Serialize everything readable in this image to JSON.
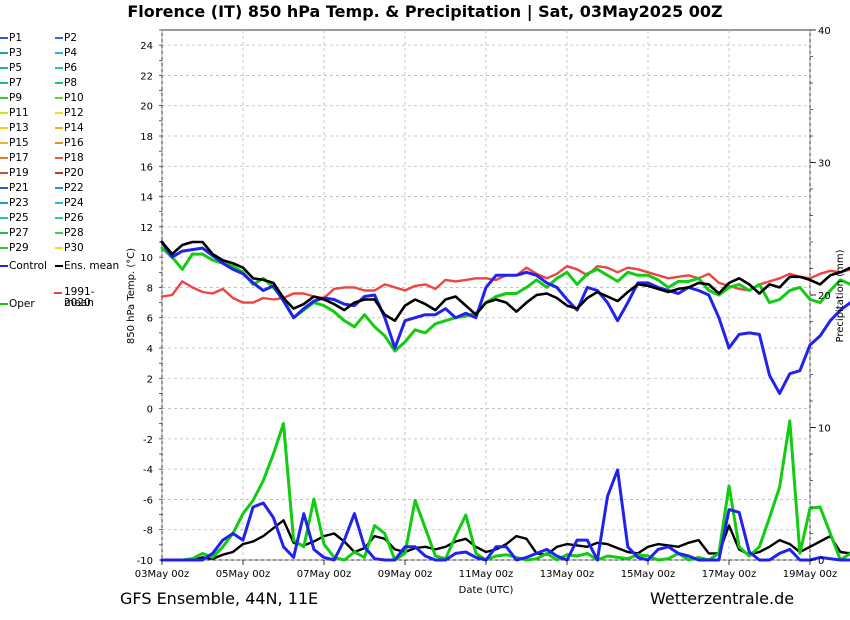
{
  "title": "Florence  (IT)  850 hPa Temp. & Precipitation | Sat, 03May2025 00Z",
  "footer": {
    "model": "GFS Ensemble, 44N, 11E",
    "source": "Wetterzentrale.de"
  },
  "legend": {
    "perturbations": [
      "P1",
      "P2",
      "P3",
      "P4",
      "P5",
      "P6",
      "P7",
      "P8",
      "P9",
      "P10",
      "P11",
      "P12",
      "P13",
      "P14",
      "P15",
      "P16",
      "P17",
      "P18",
      "P19",
      "P20",
      "P21",
      "P22",
      "P23",
      "P24",
      "P25",
      "P26",
      "P27",
      "P28",
      "P29",
      "P30"
    ],
    "control": "Control",
    "ens_mean": "Ens. mean",
    "climate_mean_line1": "1991-2020",
    "climate_mean_line2": "mean",
    "oper": "Oper"
  },
  "colors": {
    "P1": "#1f5fd6",
    "P2": "#2e6ee0",
    "P3": "#1aa6a6",
    "P4": "#2fb3d1",
    "P5": "#17b4b4",
    "P6": "#22c6b0",
    "P7": "#1ebf7a",
    "P8": "#20c46b",
    "P9": "#33cc33",
    "P10": "#5ed62b",
    "P11": "#d6e020",
    "P12": "#e8e030",
    "P13": "#f0d21e",
    "P14": "#e8b020",
    "P15": "#f0b030",
    "P16": "#e0902a",
    "P17": "#e07a2a",
    "P18": "#d8602e",
    "P19": "#c95030",
    "P20": "#c03030",
    "P21": "#1f5fd6",
    "P22": "#2a8ef0",
    "P23": "#1aa0c0",
    "P24": "#28b8e0",
    "P25": "#20c0c0",
    "P26": "#2ad09a",
    "P27": "#20b850",
    "P28": "#40d040",
    "P29": "#30c030",
    "P30": "#e8e020",
    "control": "#2222ee",
    "ens_mean": "#000000",
    "climate_mean": "#ee4444",
    "oper": "#11cc11"
  },
  "chart_data": {
    "type": "line",
    "xlabel": "Date (UTC)",
    "ylabel_left": "850 hPa Temp. (°C)",
    "ylabel_right": "Precipitation (mm)",
    "ylim_left": [
      -10,
      25
    ],
    "ylim_right": [
      0,
      40
    ],
    "y_ticks_left": [
      "-10",
      "-8",
      "-6",
      "-4",
      "-2",
      "0",
      "2",
      "4",
      "6",
      "8",
      "10",
      "12",
      "14",
      "16",
      "18",
      "20",
      "22",
      "24"
    ],
    "y_ticks_right": [
      "0",
      "10",
      "20",
      "30",
      "40"
    ],
    "x_ticks": [
      "03May 00z",
      "05May 00z",
      "07May 00z",
      "09May 00z",
      "11May 00z",
      "13May 00z",
      "15May 00z",
      "17May 00z",
      "19May 00z"
    ],
    "x_range_hours": [
      0,
      384
    ],
    "step_hours": 6,
    "grid": true,
    "temperature_series": {
      "control": [
        11.0,
        10.0,
        10.4,
        10.5,
        10.6,
        10.1,
        9.6,
        9.2,
        8.9,
        8.3,
        7.8,
        8.1,
        7.1,
        6.0,
        6.6,
        7.1,
        7.3,
        7.2,
        6.9,
        6.8,
        7.4,
        7.5,
        6.0,
        4.0,
        5.8,
        6.0,
        6.2,
        6.2,
        6.6,
        6.0,
        6.3,
        6.0,
        8.0,
        8.8,
        8.8,
        8.8,
        9.0,
        8.8,
        8.3,
        8.0,
        7.2,
        6.5,
        8.0,
        7.8,
        7.0,
        5.8,
        7.0,
        8.3,
        8.3,
        8.0,
        7.8,
        7.6,
        8.0,
        7.8,
        7.5,
        6.0,
        4.0,
        4.9,
        5.0,
        4.9,
        2.2,
        1.0,
        2.3,
        2.5,
        4.2,
        4.8,
        5.8,
        6.5,
        7.0,
        7.5,
        6.0,
        7.0,
        7.0,
        6.0
      ],
      "ens_mean": [
        11.0,
        10.2,
        10.8,
        11.0,
        11.0,
        10.2,
        9.8,
        9.6,
        9.3,
        8.6,
        8.5,
        8.3,
        7.3,
        6.6,
        6.9,
        7.4,
        7.2,
        6.9,
        6.5,
        7.0,
        7.2,
        7.2,
        6.2,
        5.8,
        6.8,
        7.2,
        6.9,
        6.5,
        7.2,
        7.4,
        6.8,
        6.2,
        7.0,
        7.2,
        7.0,
        6.4,
        7.0,
        7.5,
        7.6,
        7.3,
        6.8,
        6.6,
        7.3,
        7.7,
        7.4,
        7.1,
        7.7,
        8.2,
        8.1,
        7.9,
        7.7,
        7.9,
        8.0,
        8.3,
        8.2,
        7.6,
        8.3,
        8.6,
        8.2,
        7.6,
        8.2,
        8.0,
        8.7,
        8.7,
        8.5,
        8.2,
        8.8,
        9.0,
        9.3,
        9.2,
        9.0,
        9.3,
        9.3,
        8.9
      ],
      "climate_mean": [
        7.4,
        7.5,
        8.4,
        8.0,
        7.7,
        7.6,
        7.9,
        7.3,
        7.0,
        7.0,
        7.3,
        7.2,
        7.3,
        7.6,
        7.6,
        7.4,
        7.3,
        7.9,
        8.0,
        8.0,
        7.8,
        7.8,
        8.2,
        8.0,
        7.8,
        8.1,
        8.2,
        7.9,
        8.5,
        8.4,
        8.5,
        8.6,
        8.6,
        8.5,
        8.8,
        8.8,
        9.3,
        8.9,
        8.6,
        8.9,
        9.4,
        9.2,
        8.8,
        9.4,
        9.3,
        9.0,
        9.3,
        9.2,
        9.0,
        8.8,
        8.6,
        8.7,
        8.8,
        8.6,
        8.9,
        8.3,
        8.1,
        7.9,
        7.8,
        8.2,
        8.4,
        8.6,
        8.9,
        8.7,
        8.6,
        8.9,
        9.1,
        9.0,
        9.2,
        9.5,
        9.4,
        9.2,
        9.5,
        9.4
      ],
      "oper": [
        10.6,
        10.0,
        9.2,
        10.2,
        10.2,
        9.8,
        9.6,
        9.4,
        9.0,
        8.2,
        8.6,
        8.0,
        7.2,
        6.0,
        6.5,
        7.0,
        6.8,
        6.4,
        5.8,
        5.4,
        6.2,
        5.4,
        4.8,
        3.8,
        4.4,
        5.2,
        5.0,
        5.6,
        5.8,
        6.0,
        6.1,
        6.3,
        7.0,
        7.4,
        7.6,
        7.6,
        8.0,
        8.5,
        8.0,
        8.6,
        9.0,
        8.2,
        8.9,
        9.2,
        8.8,
        8.4,
        9.0,
        8.8,
        8.8,
        8.5,
        8.0,
        8.4,
        8.4,
        8.6,
        7.8,
        7.5,
        8.0,
        8.2,
        7.8,
        8.2,
        7.0,
        7.2,
        7.8,
        8.0,
        7.2,
        7.0,
        7.8,
        8.5,
        8.2,
        8.3,
        7.8,
        8.4,
        8.6,
        8.2
      ]
    },
    "precipitation_series": {
      "control": [
        0,
        0,
        0,
        0,
        0,
        0.5,
        1.5,
        2.0,
        1.5,
        4.0,
        4.3,
        3.2,
        1.0,
        0.2,
        3.5,
        0.8,
        0.2,
        0,
        1.5,
        3.5,
        1.0,
        0.1,
        0,
        0,
        1.0,
        1.0,
        0.3,
        0,
        0,
        0.5,
        0.6,
        0.2,
        0,
        1.0,
        1.0,
        0,
        0.2,
        0.5,
        0.8,
        0.3,
        0,
        1.5,
        1.5,
        0,
        4.8,
        6.8,
        1.0,
        0.2,
        0,
        0.8,
        1.0,
        0.5,
        0.3,
        0,
        0,
        0,
        3.8,
        3.6,
        0.6,
        0,
        0,
        0.5,
        0.8,
        0,
        0,
        0.2,
        0.1,
        0,
        0,
        0.4,
        0,
        0.3,
        0,
        0
      ],
      "ens_mean": [
        0,
        0,
        0,
        0,
        0.2,
        0.1,
        0.4,
        0.6,
        1.2,
        1.4,
        1.8,
        2.4,
        3.0,
        1.3,
        1.1,
        1.4,
        1.8,
        2.0,
        1.4,
        0.6,
        0.9,
        1.8,
        1.6,
        0.8,
        0.6,
        0.9,
        1.0,
        0.8,
        1.0,
        1.4,
        1.6,
        1.0,
        0.6,
        0.8,
        1.2,
        1.8,
        1.6,
        0.5,
        0.4,
        1.0,
        1.2,
        1.1,
        1.0,
        1.3,
        1.2,
        0.9,
        0.6,
        0.5,
        1.0,
        1.2,
        1.1,
        1.0,
        1.3,
        1.5,
        0.5,
        0.5,
        2.6,
        0.8,
        0.4,
        0.6,
        1.0,
        1.5,
        1.2,
        0.6,
        1.0,
        1.4,
        1.8,
        0.6,
        0.5,
        1.3,
        1.6,
        0.8,
        0.5,
        1.0
      ],
      "oper": [
        0,
        0,
        0,
        0.1,
        0.5,
        0.2,
        1.0,
        2.0,
        3.5,
        4.5,
        6.0,
        8.0,
        10.3,
        1.5,
        1.0,
        4.6,
        1.2,
        0.2,
        0,
        0.6,
        0.2,
        2.6,
        2.0,
        0,
        0.5,
        4.5,
        2.4,
        0.3,
        0.1,
        1.8,
        3.4,
        0.5,
        0,
        0.3,
        0.4,
        0.2,
        0,
        0.1,
        0.5,
        0,
        0.4,
        0.3,
        0.5,
        0,
        0.3,
        0.2,
        0.1,
        0.4,
        0.3,
        0,
        0.1,
        0.5,
        0,
        0.2,
        0,
        0.5,
        5.6,
        1.0,
        0.3,
        1.0,
        3.2,
        5.5,
        10.5,
        0.5,
        3.9,
        4.0,
        2.0,
        0,
        0.5,
        2.6,
        5.3,
        0,
        0,
        0.5
      ]
    }
  }
}
